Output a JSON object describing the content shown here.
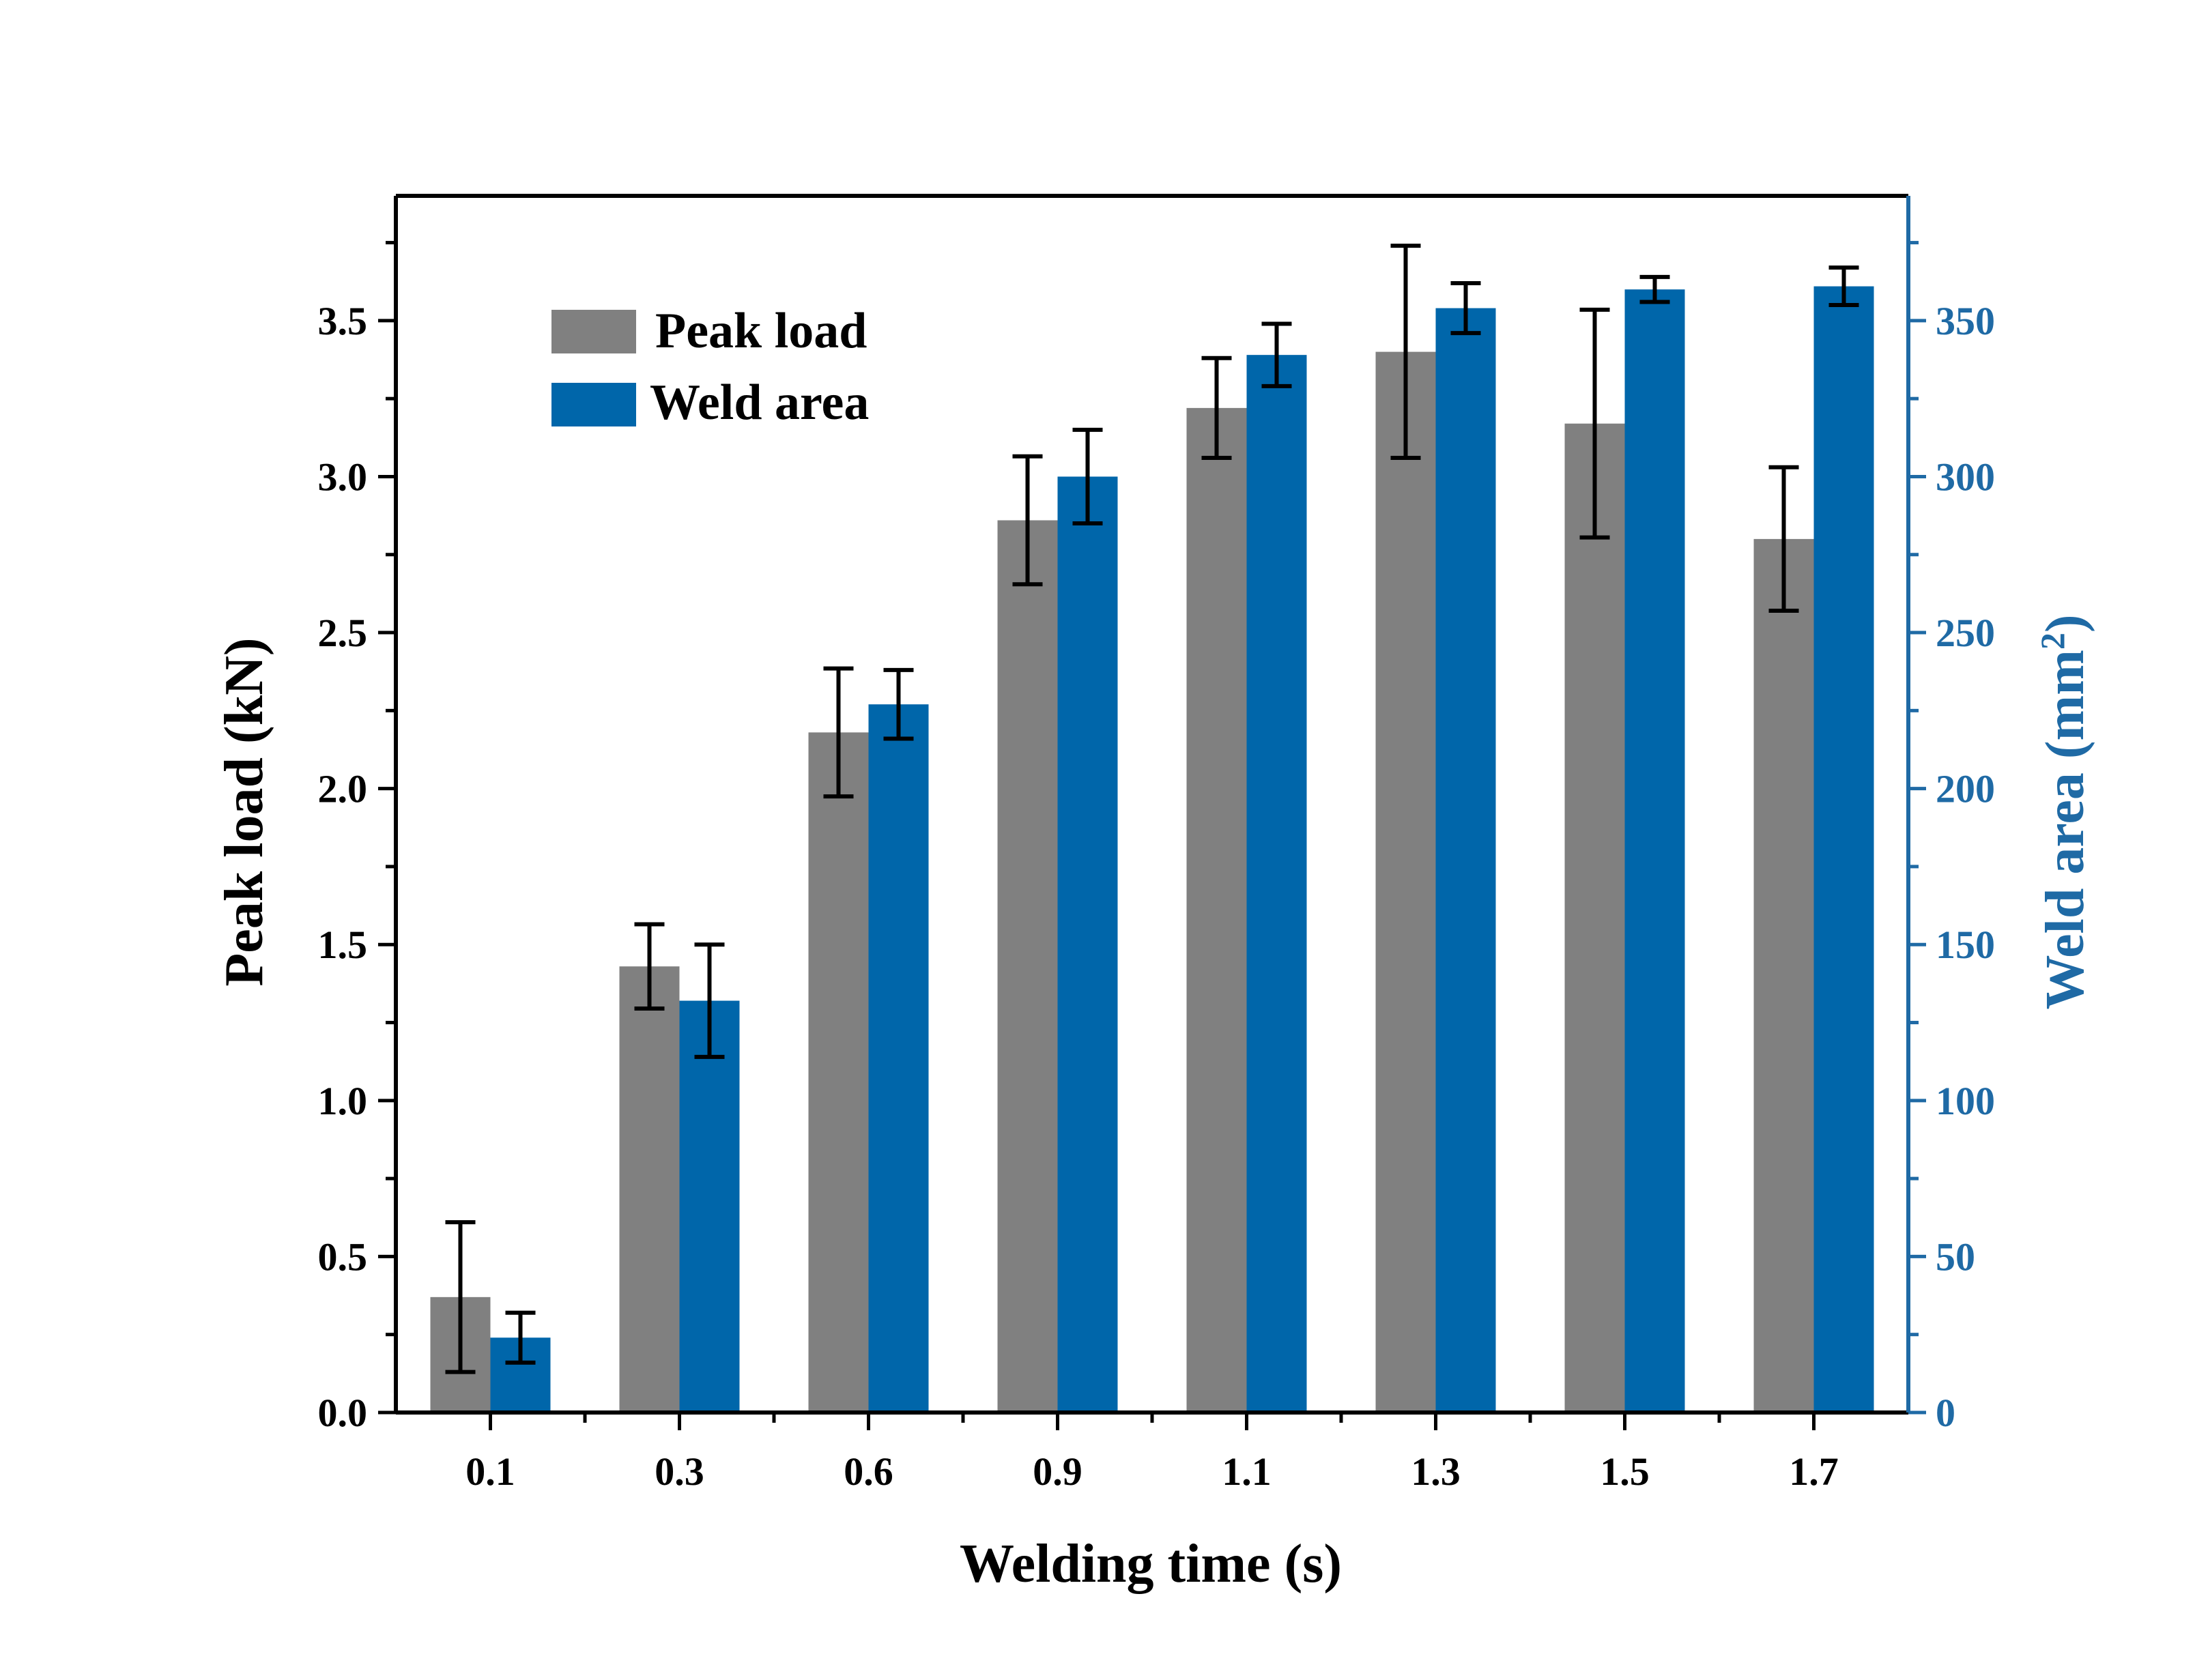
{
  "chart_data": {
    "type": "bar",
    "xlabel": "Welding time (s)",
    "ylabel": "Peak load (kN)",
    "y2label_main": "Weld area (mm",
    "y2label_sup": "2",
    "y2label_close": ")",
    "categories": [
      "0.1",
      "0.3",
      "0.6",
      "0.9",
      "1.1",
      "1.3",
      "1.5",
      "1.7"
    ],
    "ylim": [
      0,
      3.9
    ],
    "y2lim": [
      0,
      390
    ],
    "yticks": [
      "0.0",
      "0.5",
      "1.0",
      "1.5",
      "2.0",
      "2.5",
      "3.0",
      "3.5"
    ],
    "y2ticks": [
      "0",
      "50",
      "100",
      "150",
      "200",
      "250",
      "300",
      "350"
    ],
    "series": [
      {
        "name": "Peak load",
        "axis": "left",
        "color": "#808080",
        "values": [
          0.37,
          1.43,
          2.18,
          2.86,
          3.22,
          3.4,
          3.17,
          2.8
        ],
        "errors": [
          0.24,
          0.135,
          0.205,
          0.205,
          0.16,
          0.34,
          0.365,
          0.23
        ]
      },
      {
        "name": "Weld area",
        "axis": "right",
        "color": "#0066aa",
        "values": [
          24,
          132,
          227,
          300,
          339,
          354,
          360,
          361
        ],
        "errors": [
          8,
          18,
          11,
          15,
          10,
          8,
          4,
          6
        ]
      }
    ],
    "legend_position": "top-left",
    "colors": {
      "left_axis": "#000000",
      "right_axis": "#1f6aa5"
    }
  }
}
